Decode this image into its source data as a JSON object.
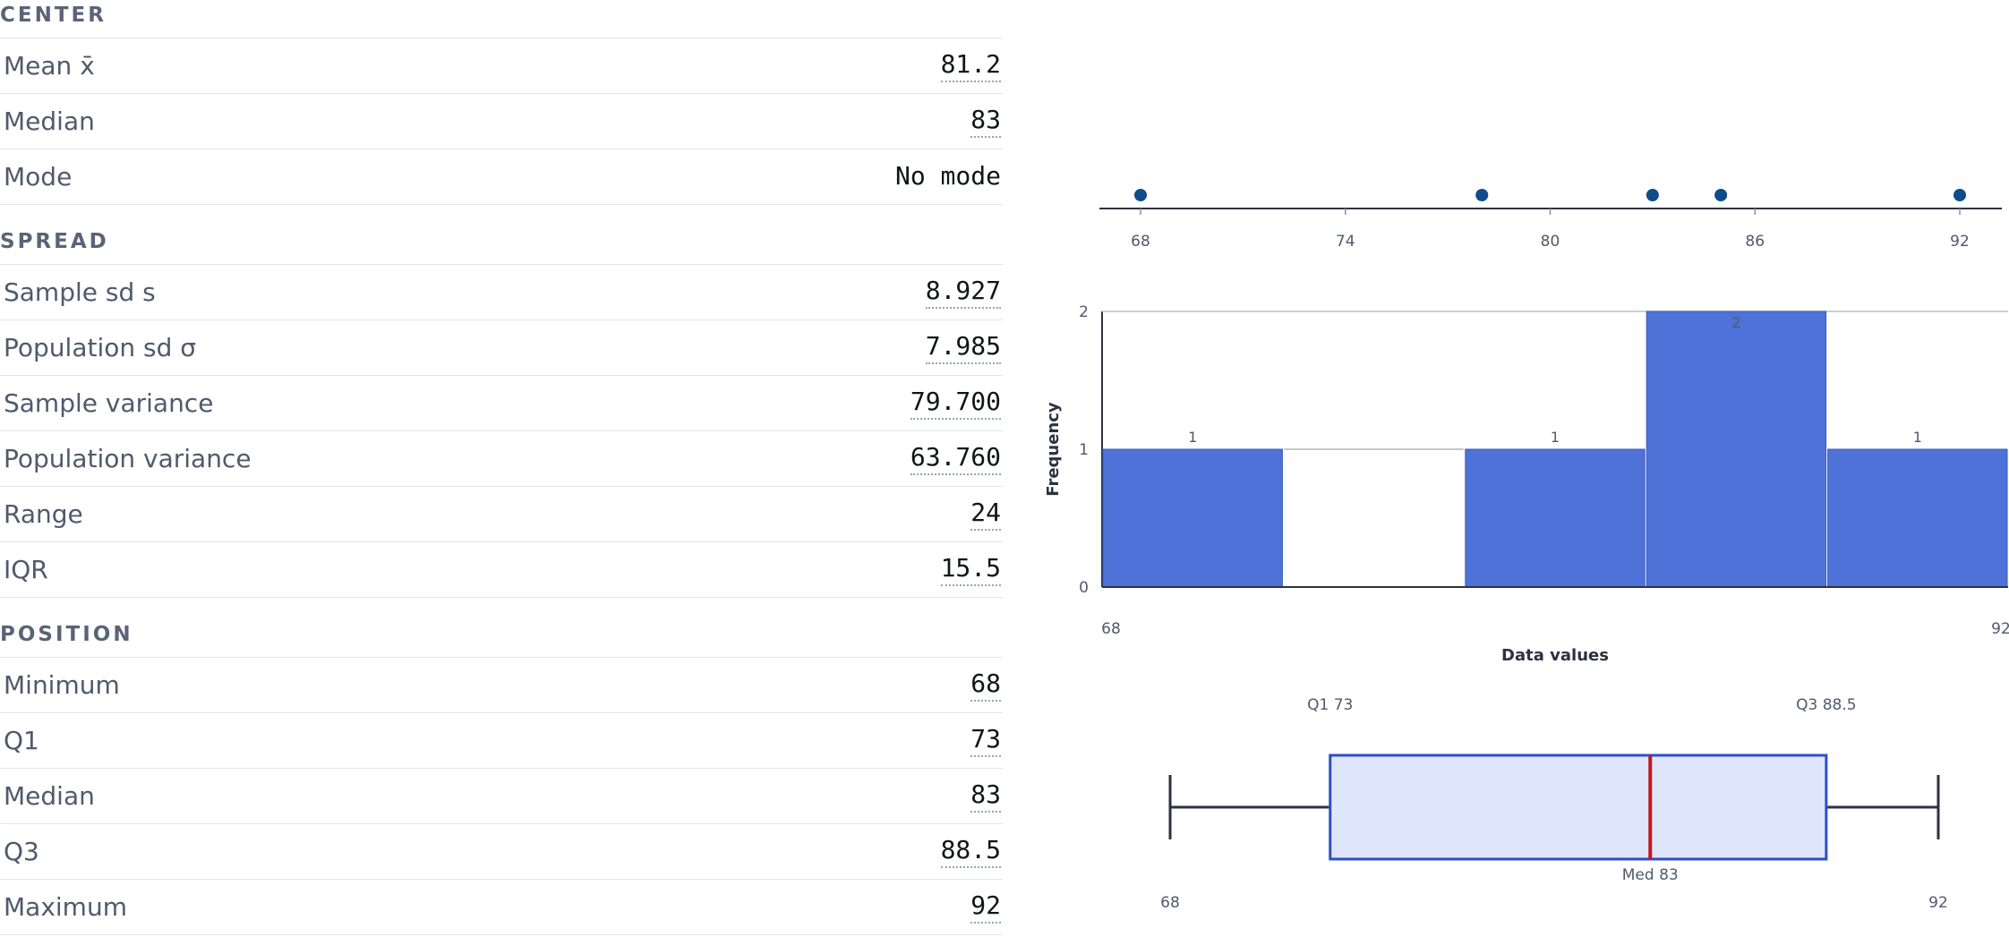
{
  "sections": {
    "center": {
      "title": "CENTER",
      "rows": [
        {
          "label": "Mean x̄",
          "value": "81.2"
        },
        {
          "label": "Median",
          "value": "83"
        },
        {
          "label": "Mode",
          "value": "No mode"
        }
      ]
    },
    "spread": {
      "title": "SPREAD",
      "rows": [
        {
          "label": "Sample sd s",
          "value": "8.927"
        },
        {
          "label": "Population sd σ",
          "value": "7.985"
        },
        {
          "label": "Sample variance",
          "value": "79.700"
        },
        {
          "label": "Population variance",
          "value": "63.760"
        },
        {
          "label": "Range",
          "value": "24"
        },
        {
          "label": "IQR",
          "value": "15.5"
        }
      ]
    },
    "position": {
      "title": "POSITION",
      "rows": [
        {
          "label": "Minimum",
          "value": "68"
        },
        {
          "label": "Q1",
          "value": "73"
        },
        {
          "label": "Median",
          "value": "83"
        },
        {
          "label": "Q3",
          "value": "88.5"
        },
        {
          "label": "Maximum",
          "value": "92"
        }
      ]
    }
  },
  "colors": {
    "dot": "#0f4c8a",
    "bar": "#4f72d9",
    "box_fill": "#dfe6fc",
    "box_stroke": "#2e4fc2",
    "median_line": "#c0181f",
    "axis": "#2b3340"
  },
  "chart_data": [
    {
      "type": "scatter",
      "values": [
        68,
        78,
        83,
        85,
        92
      ],
      "xlim": [
        68,
        92
      ],
      "ticks": [
        "68",
        "74",
        "80",
        "86",
        "92"
      ]
    },
    {
      "type": "bar",
      "bins": [
        [
          68,
          72.8
        ],
        [
          72.8,
          77.6
        ],
        [
          77.6,
          82.4
        ],
        [
          82.4,
          87.2
        ],
        [
          87.2,
          92
        ]
      ],
      "values": [
        1,
        0,
        1,
        2,
        1
      ],
      "value_labels": [
        "1",
        "",
        "1",
        "2",
        "1"
      ],
      "ylim": [
        0,
        2
      ],
      "yticks": [
        "0",
        "1",
        "2"
      ],
      "xticks": [
        "68",
        "92"
      ],
      "xlabel": "Data values",
      "ylabel": "Frequency"
    },
    {
      "type": "box",
      "min": 68,
      "q1": 73,
      "median": 83,
      "q3": 88.5,
      "max": 92,
      "labels": {
        "q1": "Q1 73",
        "q3": "Q3 88.5",
        "median": "Med 83",
        "min": "68",
        "max": "92"
      }
    }
  ]
}
